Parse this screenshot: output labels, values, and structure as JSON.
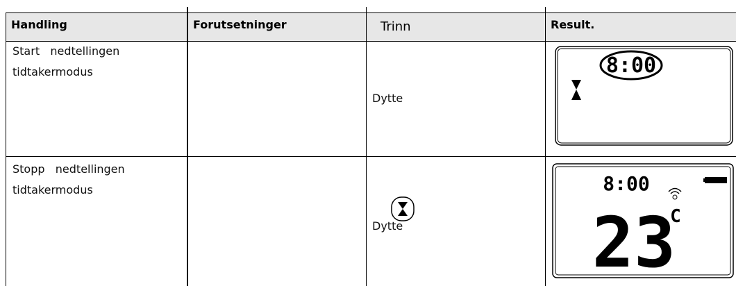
{
  "header": {
    "columns": [
      "Handling",
      "Forutsetninger",
      "Trinn",
      "Result."
    ]
  },
  "rows": [
    {
      "action": [
        "Start   nedtellingen",
        "tidtakermodus"
      ],
      "step": "Dytte",
      "display": {
        "time": "8:00"
      }
    },
    {
      "action": [
        "Stopp   nedtellingen",
        "tidtakermodus"
      ],
      "step": "Dytte",
      "display": {
        "time": "8:00",
        "temperature": "23",
        "unit": "C"
      }
    }
  ]
}
